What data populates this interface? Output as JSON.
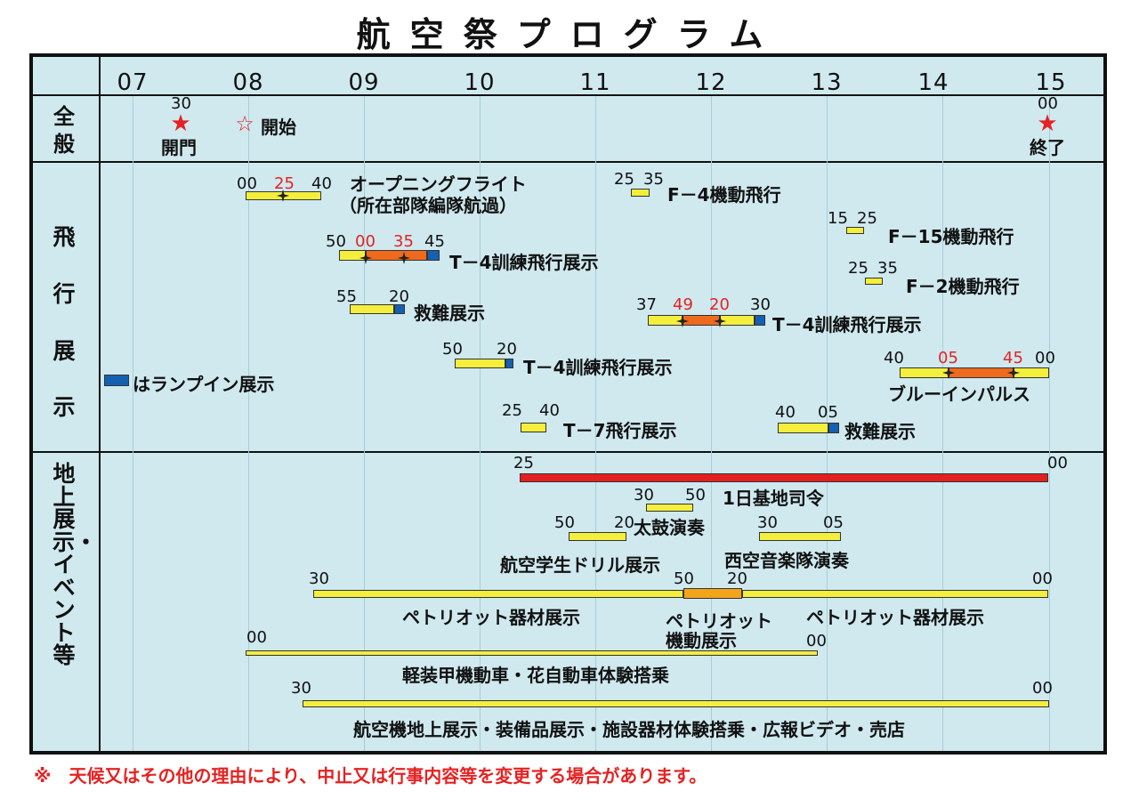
{
  "title": "航空祭プログラム",
  "hours": [
    "07",
    "08",
    "09",
    "10",
    "11",
    "12",
    "13",
    "14",
    "15"
  ],
  "sections": {
    "general": "全般",
    "flight": "飛行展示",
    "ground": "地上展示・イベント等"
  },
  "general": {
    "open_min": "30",
    "open_label": "開門",
    "start_label": "開始",
    "end_min": "00",
    "end_label": "終了"
  },
  "flight": {
    "opening": {
      "start": "00",
      "mid": "25",
      "end": "40",
      "label1": "オープニングフライト",
      "label2": "（所在部隊編隊航過）"
    },
    "t4a": {
      "start": "50",
      "m1": "00",
      "m2": "35",
      "end": "45",
      "label": "T－4訓練飛行展示"
    },
    "rescue1": {
      "start": "55",
      "end": "20",
      "label": "救難展示"
    },
    "t4b": {
      "start": "50",
      "end": "20",
      "label": "T－4訓練飛行展示"
    },
    "hammer": {
      "label": "はランプイン展示"
    },
    "t7": {
      "start": "25",
      "end": "40",
      "label": "T－7飛行展示"
    },
    "f4": {
      "start": "25",
      "end": "35",
      "label": "F－4機動飛行"
    },
    "t4c": {
      "start": "37",
      "m1": "49",
      "m2": "20",
      "end": "30",
      "label": "T－4訓練飛行展示"
    },
    "rescue2": {
      "start": "40",
      "end": "05",
      "label": "救難展示"
    },
    "f15": {
      "start": "15",
      "end": "25",
      "label": "F－15機動飛行"
    },
    "f2": {
      "start": "25",
      "end": "35",
      "label": "F－2機動飛行"
    },
    "blue": {
      "start": "40",
      "m1": "05",
      "m2": "45",
      "end": "00",
      "label": "ブルーインパルス"
    }
  },
  "ground": {
    "redbar": {
      "start": "25",
      "end": "00"
    },
    "commander": {
      "start": "30",
      "end": "50",
      "label": "1日基地司令"
    },
    "taiko": {
      "start": "50",
      "end": "20",
      "label": "太鼓演奏"
    },
    "drill": {
      "label": "航空学生ドリル展示"
    },
    "band": {
      "start": "30",
      "end": "05",
      "label": "西空音楽隊演奏"
    },
    "patriot": {
      "start": "30",
      "m1": "50",
      "m2": "20",
      "end": "00",
      "left_label": "ペトリオット器材展示",
      "mid_label1": "ペトリオット",
      "mid_label2": "機動展示",
      "right_label": "ペトリオット器材展示"
    },
    "vehicle": {
      "start": "00",
      "end": "00",
      "label": "軽装甲機動車・花自動車体験搭乗"
    },
    "aircraft": {
      "start": "30",
      "end": "00",
      "label": "航空機地上展示・装備品展示・施設器材体験搭乗・広報ビデオ・売店"
    }
  },
  "footnote": "※　天候又はその他の理由により、中止又は行事内容等を変更する場合があります。",
  "colors": {
    "background": "#cfe9ef",
    "bar_yellow": "#f4ee3c",
    "bar_orange": "#ee6a1d",
    "bar_blue": "#1560b0",
    "bar_red": "#e41f1f",
    "accent_red": "#e52222"
  }
}
